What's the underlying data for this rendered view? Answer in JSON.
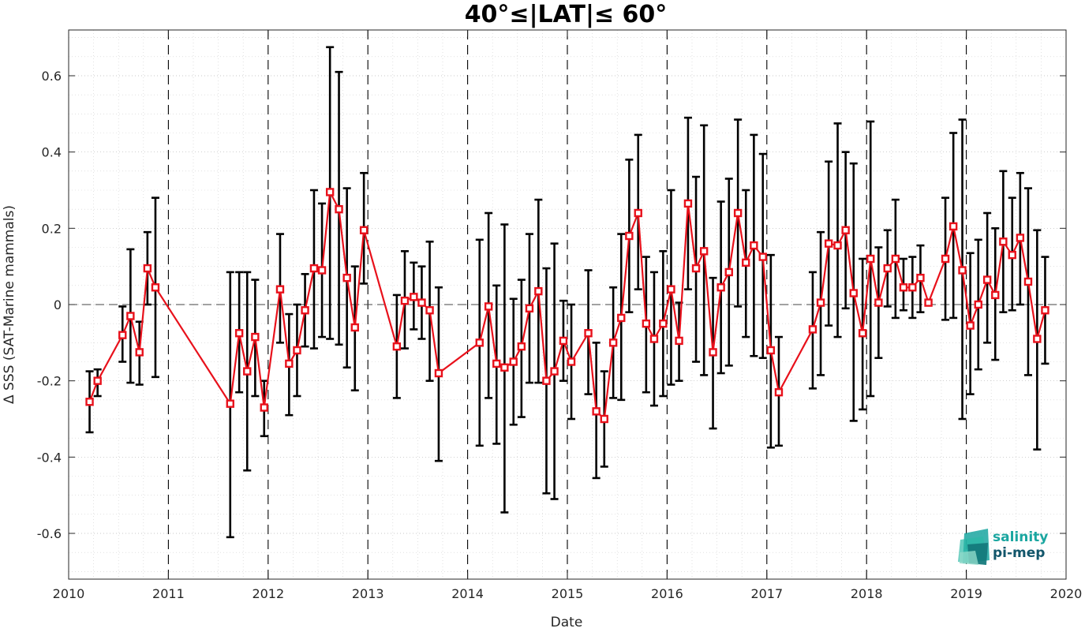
{
  "chart_data": {
    "type": "line",
    "title": "40°≤|LAT|≤ 60°",
    "xlabel": "Date",
    "ylabel": "Δ SSS (SAT-Marine mammals)",
    "xlim": [
      2010,
      2020
    ],
    "ylim": [
      -0.72,
      0.72
    ],
    "x_ticks": [
      "2010",
      "2011",
      "2012",
      "2013",
      "2014",
      "2015",
      "2016",
      "2017",
      "2018",
      "2019",
      "2020"
    ],
    "y_ticks": [
      "-0.6",
      "-0.4",
      "-0.2",
      "0",
      "0.2",
      "0.4",
      "0.6"
    ],
    "grid": true,
    "year_dividers": true,
    "zero_line": true,
    "line_color": "#e8111b",
    "errorbar_color": "#000000",
    "series": [
      {
        "x": [
          2010.21,
          2010.29,
          2010.54,
          2010.62,
          2010.71,
          2010.79,
          2010.87,
          2011.62,
          2011.71,
          2011.79,
          2011.87,
          2011.96,
          2012.12,
          2012.21,
          2012.29,
          2012.37,
          2012.46,
          2012.54,
          2012.62,
          2012.71,
          2012.79,
          2012.87,
          2012.96,
          2013.29,
          2013.37,
          2013.46,
          2013.54,
          2013.62,
          2013.71,
          2014.12,
          2014.21,
          2014.29,
          2014.37,
          2014.46,
          2014.54,
          2014.62,
          2014.71,
          2014.79,
          2014.87,
          2014.96,
          2015.04,
          2015.21,
          2015.29,
          2015.37,
          2015.46,
          2015.54,
          2015.62,
          2015.71,
          2015.79,
          2015.87,
          2015.96,
          2016.04,
          2016.12,
          2016.21,
          2016.29,
          2016.37,
          2016.46,
          2016.54,
          2016.62,
          2016.71,
          2016.79,
          2016.87,
          2016.96,
          2017.04,
          2017.12,
          2017.46,
          2017.54,
          2017.62,
          2017.71,
          2017.79,
          2017.87,
          2017.96,
          2018.04,
          2018.12,
          2018.21,
          2018.29,
          2018.37,
          2018.46,
          2018.54,
          2018.62,
          2018.79,
          2018.87,
          2018.96,
          2019.04,
          2019.12,
          2019.21,
          2019.29,
          2019.37,
          2019.46,
          2019.54,
          2019.62,
          2019.71,
          2019.79
        ],
        "values": [
          -0.255,
          -0.2,
          -0.08,
          -0.03,
          -0.125,
          0.095,
          0.045,
          -0.26,
          -0.075,
          -0.175,
          -0.085,
          -0.27,
          0.04,
          -0.155,
          -0.12,
          -0.015,
          0.095,
          0.09,
          0.295,
          0.25,
          0.07,
          -0.06,
          0.195,
          -0.11,
          0.01,
          0.02,
          0.005,
          -0.015,
          -0.18,
          -0.1,
          -0.005,
          -0.155,
          -0.165,
          -0.15,
          -0.11,
          -0.01,
          0.035,
          -0.2,
          -0.175,
          -0.095,
          -0.15,
          -0.075,
          -0.28,
          -0.3,
          -0.1,
          -0.035,
          0.18,
          0.24,
          -0.05,
          -0.09,
          -0.05,
          0.04,
          -0.095,
          0.265,
          0.095,
          0.14,
          -0.125,
          0.045,
          0.085,
          0.24,
          0.11,
          0.155,
          0.125,
          -0.12,
          -0.23,
          -0.065,
          0.005,
          0.16,
          0.155,
          0.195,
          0.03,
          -0.075,
          0.12,
          0.005,
          0.095,
          0.12,
          0.045,
          0.045,
          0.07,
          0.005,
          0.12,
          0.205,
          0.09,
          -0.055,
          0.0,
          0.065,
          0.025,
          0.165,
          0.13,
          0.175,
          0.06,
          -0.09,
          -0.015
        ],
        "err_low": [
          -0.335,
          -0.24,
          -0.15,
          -0.205,
          -0.21,
          0.0,
          -0.19,
          -0.61,
          -0.23,
          -0.435,
          -0.24,
          -0.345,
          -0.1,
          -0.29,
          -0.24,
          -0.11,
          -0.115,
          -0.085,
          -0.09,
          -0.105,
          -0.165,
          -0.225,
          0.055,
          -0.245,
          -0.115,
          -0.065,
          -0.09,
          -0.2,
          -0.41,
          -0.37,
          -0.245,
          -0.365,
          -0.545,
          -0.315,
          -0.295,
          -0.205,
          -0.205,
          -0.495,
          -0.51,
          -0.2,
          -0.3,
          -0.235,
          -0.455,
          -0.425,
          -0.245,
          -0.25,
          -0.02,
          0.04,
          -0.23,
          -0.265,
          -0.24,
          -0.21,
          -0.2,
          0.04,
          -0.15,
          -0.185,
          -0.325,
          -0.18,
          -0.16,
          -0.005,
          -0.085,
          -0.135,
          -0.14,
          -0.375,
          -0.37,
          -0.22,
          -0.185,
          -0.055,
          -0.085,
          -0.01,
          -0.305,
          -0.275,
          -0.24,
          -0.14,
          -0.005,
          -0.035,
          -0.015,
          -0.035,
          -0.02,
          0.0,
          -0.04,
          -0.035,
          -0.3,
          -0.235,
          -0.17,
          -0.1,
          -0.145,
          -0.02,
          -0.015,
          0.0,
          -0.185,
          -0.38,
          -0.155
        ],
        "err_high": [
          -0.175,
          -0.17,
          -0.005,
          0.145,
          -0.045,
          0.19,
          0.28,
          0.085,
          0.085,
          0.085,
          0.065,
          -0.2,
          0.185,
          -0.025,
          0.0,
          0.08,
          0.3,
          0.265,
          0.675,
          0.61,
          0.305,
          0.1,
          0.345,
          0.025,
          0.14,
          0.11,
          0.1,
          0.165,
          0.045,
          0.17,
          0.24,
          0.05,
          0.21,
          0.015,
          0.065,
          0.185,
          0.275,
          0.095,
          0.16,
          0.01,
          0.0,
          0.09,
          -0.1,
          -0.175,
          0.045,
          0.185,
          0.38,
          0.445,
          0.125,
          0.085,
          0.14,
          0.3,
          0.005,
          0.49,
          0.335,
          0.47,
          0.07,
          0.27,
          0.33,
          0.485,
          0.3,
          0.445,
          0.395,
          0.13,
          -0.085,
          0.085,
          0.19,
          0.375,
          0.475,
          0.4,
          0.37,
          0.12,
          0.48,
          0.15,
          0.195,
          0.275,
          0.12,
          0.125,
          0.155,
          0.01,
          0.28,
          0.45,
          0.485,
          0.135,
          0.17,
          0.24,
          0.2,
          0.35,
          0.28,
          0.345,
          0.305,
          0.195,
          0.125
        ]
      }
    ]
  },
  "logo": {
    "line1": "salinity",
    "line2": "pi-mep",
    "color1": "#1aa6a0",
    "color2": "#12566b"
  }
}
